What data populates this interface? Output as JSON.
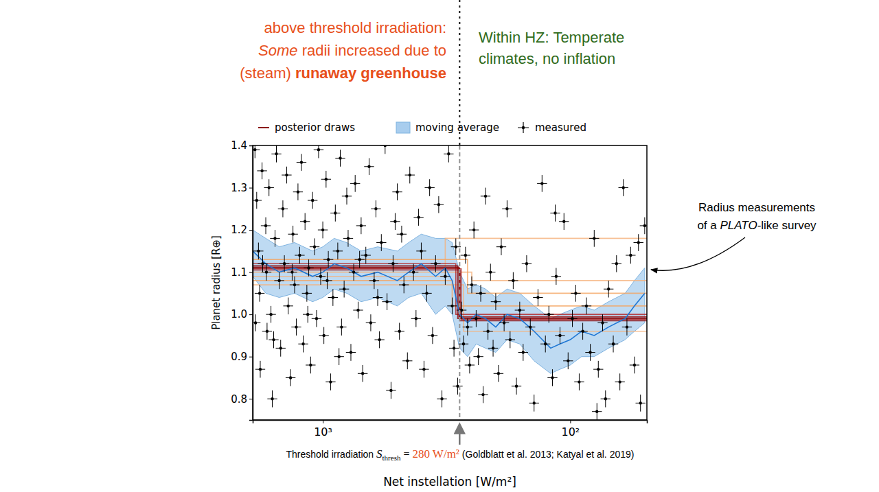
{
  "chart_data": {
    "type": "scatter",
    "x_label": "Net instellation [W/m²]",
    "y_label": "Planet radius [R⊕]",
    "log": "x",
    "grid": false,
    "legend": "top",
    "xlim": [
      1920,
      49
    ],
    "ylim": [
      0.75,
      1.4
    ],
    "xticks": [
      {
        "value": 1000,
        "label": "10³"
      },
      {
        "value": 100,
        "label": "10²"
      }
    ],
    "yticks": [
      0.8,
      0.9,
      {
        "value": 1,
        "label": "1.0"
      },
      1.1,
      1.2,
      1.3,
      1.4
    ],
    "threshold": {
      "label": "Threshold irradiation",
      "symbol": "S",
      "subscript": "thresh",
      "relation": "=",
      "value": 280,
      "unit": "W/m²",
      "refs": "(Goldblatt et al. 2013; Katyal et al. 2019)"
    },
    "annotations": {
      "left": [
        [
          "above threshold irradiation:"
        ],
        [
          "Some",
          " radii increased due to"
        ],
        [
          "(steam) ",
          "runaway greenhouse"
        ]
      ],
      "right": [
        [
          "Within HZ: Temperate"
        ],
        [
          "climates, no inflation"
        ]
      ],
      "callout": [
        [
          "Radius measurements"
        ],
        [
          "of a ",
          "PLATO",
          "-like survey"
        ]
      ]
    },
    "series": [
      {
        "name": "posterior draws",
        "type": "step",
        "color": "#8b1a1a",
        "threshold": [
          285,
          280,
          278,
          282,
          276,
          290,
          300,
          260,
          320,
          250,
          270
        ],
        "value_above": [
          1.115,
          1.11,
          1.105,
          1.112,
          1.108,
          1.12,
          1.08,
          1.13,
          1.09,
          1.1,
          1.07
        ],
        "value_below": [
          0.99,
          0.985,
          0.995,
          0.992,
          0.988,
          1.0,
          1.02,
          1.05,
          1.18,
          1.08,
          0.96
        ],
        "colors": [
          "#8b0000",
          "#8b0000",
          "#a01010",
          "#8b0000",
          "#b22222",
          "#b22222",
          "#f4a460",
          "#f4a460",
          "#f5b07a",
          "#f5b07a",
          "#f5b07a"
        ]
      },
      {
        "name": "moving average",
        "type": "line",
        "color": "#1f77d4",
        "x": [
          1920,
          1700,
          1500,
          1300,
          1100,
          1000,
          900,
          800,
          700,
          600,
          500,
          450,
          400,
          350,
          320,
          300,
          280,
          260,
          240,
          220,
          200,
          180,
          160,
          140,
          120,
          110,
          100,
          90,
          80,
          70,
          60,
          55,
          50
        ],
        "values": [
          1.15,
          1.12,
          1.1,
          1.11,
          1.09,
          1.1,
          1.12,
          1.11,
          1.09,
          1.1,
          1.08,
          1.1,
          1.12,
          1.09,
          1.11,
          1.08,
          1.0,
          0.98,
          1.0,
          0.99,
          0.97,
          1.0,
          0.99,
          0.96,
          0.92,
          0.93,
          0.94,
          0.96,
          0.95,
          0.97,
          0.99,
          1.02,
          1.05
        ],
        "lower": [
          1.09,
          1.05,
          1.04,
          1.05,
          1.03,
          1.04,
          1.06,
          1.05,
          1.03,
          1.04,
          1.02,
          1.04,
          1.05,
          1.0,
          1.02,
          1.0,
          0.92,
          0.9,
          0.93,
          0.92,
          0.91,
          0.94,
          0.93,
          0.89,
          0.86,
          0.87,
          0.88,
          0.9,
          0.9,
          0.92,
          0.94,
          0.96,
          0.98
        ],
        "upper": [
          1.2,
          1.18,
          1.16,
          1.17,
          1.15,
          1.16,
          1.18,
          1.17,
          1.15,
          1.16,
          1.15,
          1.17,
          1.19,
          1.18,
          1.18,
          1.17,
          1.1,
          1.06,
          1.07,
          1.06,
          1.04,
          1.06,
          1.05,
          1.02,
          0.99,
          1.0,
          1.01,
          1.02,
          1.01,
          1.03,
          1.05,
          1.08,
          1.11
        ]
      },
      {
        "name": "measured",
        "type": "scatter",
        "color": "#000000",
        "marker": "plus",
        "yerr": 0.02,
        "xerr_dex": 0.02,
        "x": [
          1880,
          1850,
          1820,
          1800,
          1870,
          1790,
          1760,
          1700,
          1690,
          1680,
          1650,
          1620,
          1600,
          1560,
          1540,
          1500,
          1480,
          1450,
          1430,
          1400,
          1380,
          1350,
          1320,
          1300,
          1280,
          1260,
          1240,
          1220,
          1200,
          1180,
          1160,
          1140,
          1120,
          1100,
          1080,
          1060,
          1040,
          1020,
          1000,
          990,
          970,
          950,
          930,
          910,
          890,
          870,
          850,
          840,
          820,
          800,
          790,
          770,
          750,
          740,
          720,
          700,
          690,
          670,
          650,
          640,
          620,
          610,
          590,
          580,
          560,
          550,
          530,
          520,
          500,
          490,
          480,
          470,
          455,
          445,
          430,
          420,
          410,
          400,
          390,
          380,
          370,
          360,
          350,
          340,
          330,
          320,
          310,
          300,
          295,
          290,
          285,
          1750,
          1580,
          1330,
          1150,
          960,
          860,
          710,
          600,
          510,
          275,
          270,
          265,
          260,
          255,
          250,
          245,
          240,
          235,
          230,
          225,
          220,
          215,
          210,
          205,
          200,
          195,
          190,
          185,
          180,
          175,
          170,
          165,
          160,
          155,
          150,
          145,
          140,
          135,
          130,
          126,
          122,
          118,
          114,
          110,
          106,
          102,
          98,
          95,
          92,
          89,
          86,
          83,
          80,
          77,
          74,
          72,
          70,
          67,
          65,
          63,
          61,
          59,
          57,
          55,
          53,
          52,
          50,
          78,
          115
        ],
        "values": [
          1.39,
          1.27,
          1.15,
          1.05,
          0.98,
          0.87,
          1.34,
          1.21,
          1.1,
          0.96,
          1.3,
          1.0,
          0.8,
          1.18,
          1.38,
          1.08,
          0.92,
          1.25,
          1.12,
          1.33,
          1.02,
          0.85,
          1.19,
          1.07,
          0.97,
          1.29,
          1.14,
          1.36,
          0.93,
          1.22,
          1.05,
          1.11,
          0.88,
          1.27,
          1.16,
          0.99,
          1.39,
          1.09,
          1.2,
          0.95,
          1.32,
          1.13,
          0.84,
          1.04,
          1.24,
          1.15,
          1.37,
          0.97,
          1.06,
          1.28,
          1.18,
          0.91,
          1.1,
          1.31,
          1.01,
          1.21,
          0.86,
          1.14,
          1.35,
          0.98,
          1.08,
          1.25,
          0.94,
          1.17,
          1.4,
          1.03,
          0.82,
          1.12,
          1.29,
          0.96,
          1.19,
          1.07,
          0.89,
          1.33,
          1.1,
          0.99,
          1.23,
          1.15,
          0.87,
          1.05,
          1.3,
          0.95,
          1.12,
          1.26,
          0.8,
          1.09,
          1.38,
          1.02,
          0.92,
          1.16,
          0.83,
          1.12,
          0.94,
          1.1,
          1.0,
          1.08,
          0.9,
          1.13,
          1.04,
          1.22,
          1.01,
          0.93,
          1.14,
          0.97,
          0.88,
          1.07,
          1.2,
          0.99,
          0.9,
          1.05,
          0.81,
          1.28,
          0.96,
          1.1,
          0.92,
          1.03,
          0.86,
          1.16,
          0.98,
          1.25,
          0.94,
          1.08,
          0.83,
          1.01,
          0.91,
          1.12,
          0.97,
          0.79,
          1.04,
          1.31,
          0.93,
          1.0,
          0.85,
          1.09,
          0.95,
          1.22,
          0.89,
          0.99,
          1.05,
          0.84,
          0.96,
          1.02,
          0.91,
          1.18,
          0.87,
          0.98,
          0.8,
          1.06,
          0.93,
          1.12,
          0.84,
          1.3,
          0.97,
          1.14,
          0.88,
          1.17,
          0.79,
          1.21,
          0.77,
          1.24
        ]
      }
    ]
  }
}
